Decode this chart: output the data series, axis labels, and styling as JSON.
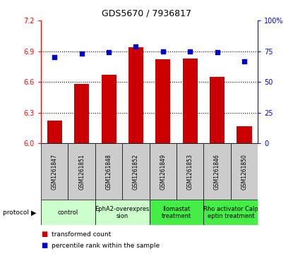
{
  "title": "GDS5670 / 7936817",
  "samples": [
    "GSM1261847",
    "GSM1261851",
    "GSM1261848",
    "GSM1261852",
    "GSM1261849",
    "GSM1261853",
    "GSM1261846",
    "GSM1261850"
  ],
  "bar_values": [
    6.22,
    6.58,
    6.67,
    6.94,
    6.82,
    6.83,
    6.65,
    6.17
  ],
  "dot_values": [
    70,
    73,
    74,
    79,
    75,
    75,
    74,
    67
  ],
  "ylim_left": [
    6.0,
    7.2
  ],
  "ylim_right": [
    0,
    100
  ],
  "yticks_left": [
    6.0,
    6.3,
    6.6,
    6.9,
    7.2
  ],
  "yticks_right": [
    0,
    25,
    50,
    75,
    100
  ],
  "bar_color": "#cc0000",
  "dot_color": "#0000cc",
  "protocol_groups": [
    {
      "label": "control",
      "samples": [
        0,
        1
      ],
      "color": "#ccffcc"
    },
    {
      "label": "EphA2-overexpres\nsion",
      "samples": [
        2,
        3
      ],
      "color": "#ccffcc"
    },
    {
      "label": "Ilomastat\ntreatment",
      "samples": [
        4,
        5
      ],
      "color": "#44ee44"
    },
    {
      "label": "Rho activator Calp\neptin treatment",
      "samples": [
        6,
        7
      ],
      "color": "#44ee44"
    }
  ],
  "legend_bar_label": "transformed count",
  "legend_dot_label": "percentile rank within the sample",
  "protocol_label": "protocol",
  "sample_bg_color": "#cccccc",
  "title_fontsize": 9,
  "tick_fontsize": 7,
  "sample_fontsize": 5.5,
  "proto_fontsize": 6,
  "legend_fontsize": 6.5
}
